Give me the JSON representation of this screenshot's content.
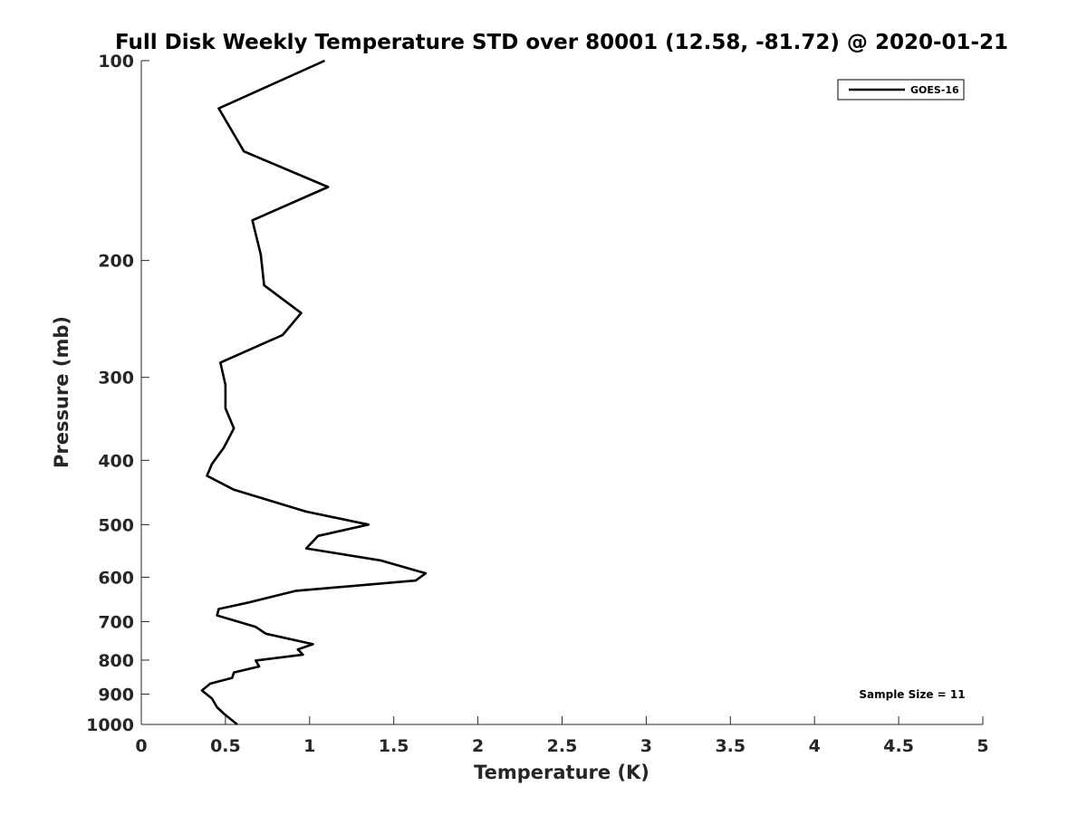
{
  "chart_data": {
    "type": "line",
    "title": "Full Disk Weekly Temperature STD over 80001 (12.58, -81.72) @ 2020-01-21",
    "xlabel": "Temperature (K)",
    "ylabel": "Pressure (mb)",
    "xlim": [
      0,
      5
    ],
    "ylim": [
      100,
      1000
    ],
    "y_scale": "log",
    "y_reversed": true,
    "grid": false,
    "legend_position": "top-right",
    "x_ticks": [
      0,
      0.5,
      1,
      1.5,
      2,
      2.5,
      3,
      3.5,
      4,
      4.5,
      5
    ],
    "x_tick_labels": [
      "0",
      "0.5",
      "1",
      "1.5",
      "2",
      "2.5",
      "3",
      "3.5",
      "4",
      "4.5",
      "5"
    ],
    "y_ticks": [
      100,
      200,
      300,
      400,
      500,
      600,
      700,
      800,
      900,
      1000
    ],
    "y_tick_labels": [
      "100",
      "200",
      "300",
      "400",
      "500",
      "600",
      "700",
      "800",
      "900",
      "1000"
    ],
    "series": [
      {
        "name": "GOES-16",
        "color": "#000000",
        "points": [
          [
            1.09,
            100
          ],
          [
            0.46,
            118
          ],
          [
            0.61,
            137
          ],
          [
            1.11,
            155
          ],
          [
            0.66,
            174
          ],
          [
            0.71,
            196
          ],
          [
            0.73,
            218
          ],
          [
            0.95,
            240
          ],
          [
            0.84,
            259
          ],
          [
            0.47,
            285
          ],
          [
            0.5,
            308
          ],
          [
            0.5,
            334
          ],
          [
            0.55,
            358
          ],
          [
            0.49,
            383
          ],
          [
            0.42,
            405
          ],
          [
            0.39,
            422
          ],
          [
            0.55,
            443
          ],
          [
            0.98,
            478
          ],
          [
            1.35,
            500
          ],
          [
            1.05,
            520
          ],
          [
            0.98,
            543
          ],
          [
            1.42,
            566
          ],
          [
            1.69,
            592
          ],
          [
            1.63,
            607
          ],
          [
            0.92,
            629
          ],
          [
            0.65,
            654
          ],
          [
            0.46,
            670
          ],
          [
            0.45,
            685
          ],
          [
            0.68,
            713
          ],
          [
            0.74,
            730
          ],
          [
            1.02,
            757
          ],
          [
            0.93,
            771
          ],
          [
            0.96,
            785
          ],
          [
            0.68,
            801
          ],
          [
            0.7,
            818
          ],
          [
            0.55,
            835
          ],
          [
            0.54,
            851
          ],
          [
            0.41,
            868
          ],
          [
            0.36,
            889
          ],
          [
            0.42,
            914
          ],
          [
            0.45,
            942
          ],
          [
            0.49,
            963
          ],
          [
            0.57,
            1000
          ]
        ]
      }
    ],
    "annotation": "Sample Size = 11"
  }
}
